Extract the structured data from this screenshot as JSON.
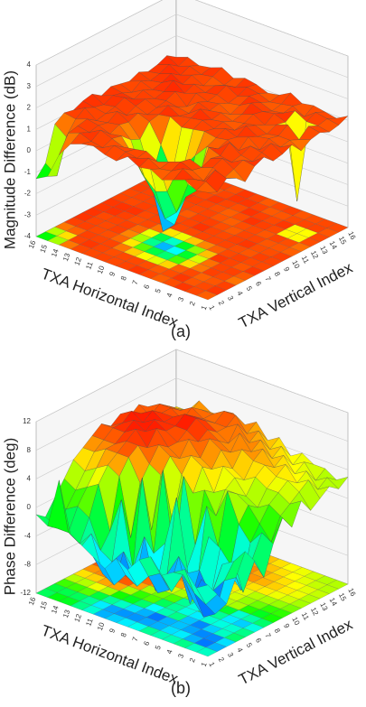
{
  "chart_data": [
    {
      "type": "surface",
      "z_label": "Magnitude Difference (dB)",
      "x_label": "TXA Horizontal Index",
      "y_label": "TXA Vertical Index",
      "caption": "(a)",
      "x": [
        1,
        2,
        3,
        4,
        5,
        6,
        7,
        8,
        9,
        10,
        11,
        12,
        13,
        14,
        15,
        16
      ],
      "y": [
        1,
        2,
        3,
        4,
        5,
        6,
        7,
        8,
        9,
        10,
        11,
        12,
        13,
        14,
        15,
        16
      ],
      "zlim": [
        -4,
        4
      ],
      "zticks": [
        -4,
        -3,
        -2,
        -1,
        0,
        1,
        2,
        3,
        4
      ],
      "z": [
        [
          1.0,
          0.8,
          1.2,
          1.0,
          0.6,
          1.1,
          1.3,
          0.9,
          1.0,
          1.2,
          0.7,
          1.0,
          1.1,
          0.9,
          1.0,
          1.2
        ],
        [
          0.9,
          1.1,
          1.4,
          0.8,
          1.0,
          1.2,
          0.9,
          1.1,
          1.3,
          0.9,
          1.0,
          0.8,
          1.2,
          1.0,
          1.1,
          0.9
        ],
        [
          1.2,
          1.0,
          0.7,
          1.1,
          1.3,
          0.9,
          1.0,
          1.2,
          0.8,
          1.1,
          1.0,
          1.3,
          -2.5,
          1.0,
          1.2,
          1.0
        ],
        [
          1.0,
          1.3,
          1.0,
          0.9,
          1.1,
          1.0,
          1.4,
          0.8,
          1.2,
          1.0,
          0.9,
          1.1,
          1.0,
          1.3,
          0.8,
          1.1
        ],
        [
          0.8,
          1.0,
          1.2,
          1.1,
          0.2,
          1.2,
          0.9,
          1.1,
          1.0,
          1.3,
          1.1,
          0.9,
          1.2,
          1.0,
          1.1,
          1.0
        ],
        [
          1.1,
          0.9,
          1.0,
          0.5,
          -0.5,
          -1.0,
          0.8,
          1.0,
          1.2,
          0.9,
          1.0,
          1.2,
          1.1,
          0.9,
          1.0,
          1.3
        ],
        [
          1.0,
          1.2,
          0.8,
          -0.8,
          -2.0,
          -1.5,
          0.2,
          1.1,
          1.0,
          1.1,
          0.9,
          1.0,
          1.3,
          1.1,
          0.9,
          1.0
        ],
        [
          1.3,
          1.0,
          1.1,
          -1.0,
          -2.5,
          -3.0,
          -0.5,
          1.0,
          1.2,
          1.0,
          1.1,
          0.8,
          1.0,
          1.2,
          1.1,
          0.9
        ],
        [
          0.9,
          1.1,
          1.0,
          -0.5,
          -1.5,
          -3.5,
          -1.0,
          0.9,
          1.1,
          1.3,
          1.0,
          1.1,
          0.9,
          1.0,
          1.2,
          1.1
        ],
        [
          1.0,
          1.2,
          0.9,
          0.3,
          -0.8,
          -1.2,
          0.1,
          1.2,
          1.0,
          0.9,
          1.2,
          1.0,
          1.1,
          1.3,
          1.0,
          1.2
        ],
        [
          1.2,
          0.9,
          1.1,
          1.0,
          0.6,
          0.4,
          1.0,
          1.1,
          1.3,
          1.0,
          0.8,
          1.2,
          1.0,
          1.1,
          0.9,
          1.0
        ],
        [
          1.1,
          1.0,
          1.3,
          0.9,
          1.1,
          1.0,
          1.2,
          0.9,
          1.0,
          1.1,
          1.3,
          1.0,
          1.2,
          0.9,
          1.1,
          1.3
        ],
        [
          0.9,
          1.2,
          1.0,
          1.1,
          1.0,
          1.3,
          0.9,
          1.1,
          1.2,
          1.0,
          1.1,
          1.4,
          1.0,
          1.2,
          1.0,
          1.1
        ],
        [
          0.2,
          1.0,
          1.1,
          1.2,
          0.9,
          1.0,
          1.1,
          1.3,
          1.0,
          1.2,
          1.0,
          1.1,
          1.3,
          1.0,
          1.2,
          1.0
        ],
        [
          -1.0,
          -1.2,
          0.4,
          1.0,
          1.3,
          1.1,
          1.0,
          1.2,
          1.1,
          0.9,
          1.2,
          1.0,
          1.1,
          1.3,
          1.0,
          1.2
        ],
        [
          -1.3,
          -0.8,
          0.8,
          1.1,
          1.0,
          1.2,
          1.3,
          1.0,
          1.2,
          1.1,
          1.0,
          1.2,
          1.0,
          1.1,
          1.3,
          1.0
        ]
      ]
    },
    {
      "type": "surface",
      "z_label": "Phase Difference (deg)",
      "x_label": "TXA Horizontal Index",
      "y_label": "TXA Vertical Index",
      "caption": "(b)",
      "x": [
        1,
        2,
        3,
        4,
        5,
        6,
        7,
        8,
        9,
        10,
        11,
        12,
        13,
        14,
        15,
        16
      ],
      "y": [
        1,
        2,
        3,
        4,
        5,
        6,
        7,
        8,
        9,
        10,
        11,
        12,
        13,
        14,
        15,
        16
      ],
      "zlim": [
        -12,
        12
      ],
      "zticks": [
        -12,
        -8,
        -4,
        0,
        4,
        8,
        12
      ],
      "z": [
        [
          -2,
          -4,
          -6,
          -3,
          0,
          -2,
          -5,
          -1,
          2,
          0,
          3,
          1,
          2,
          3,
          2,
          3
        ],
        [
          -3,
          -6,
          -8,
          -4,
          -2,
          -7,
          -3,
          0,
          -2,
          1,
          2,
          3,
          4,
          2,
          3,
          2
        ],
        [
          -1,
          -5,
          -9,
          -6,
          -3,
          -4,
          -8,
          -2,
          0,
          2,
          3,
          4,
          3,
          4,
          2,
          3
        ],
        [
          -2,
          -3,
          -7,
          -5,
          -8,
          -2,
          -6,
          0,
          2,
          1,
          3,
          4,
          5,
          3,
          4,
          3
        ],
        [
          -3,
          -6,
          -4,
          -9,
          -5,
          -1,
          -3,
          4,
          3,
          2,
          4,
          5,
          4,
          5,
          3,
          4
        ],
        [
          -1,
          -4,
          -7,
          -3,
          -6,
          -8,
          2,
          0,
          3,
          4,
          3,
          5,
          6,
          4,
          5,
          3
        ],
        [
          -2,
          -5,
          -8,
          -6,
          4,
          -7,
          -4,
          3,
          2,
          5,
          4,
          6,
          5,
          6,
          4,
          5
        ],
        [
          -4,
          -7,
          -5,
          -9,
          -3,
          -6,
          5,
          2,
          5,
          4,
          6,
          5,
          7,
          5,
          6,
          4
        ],
        [
          -3,
          -6,
          -8,
          -2,
          -5,
          6,
          -2,
          4,
          6,
          5,
          7,
          6,
          5,
          7,
          5,
          6
        ],
        [
          -5,
          -8,
          -4,
          -7,
          5,
          -3,
          4,
          6,
          5,
          7,
          6,
          7,
          6,
          6,
          7,
          5
        ],
        [
          -4,
          -7,
          -6,
          2,
          -4,
          3,
          5,
          7,
          6,
          6,
          7,
          8,
          7,
          6,
          7,
          6
        ],
        [
          -3,
          -2,
          -5,
          -3,
          4,
          6,
          7,
          6,
          8,
          7,
          7,
          8,
          7,
          6,
          6,
          5
        ],
        [
          -2,
          -4,
          -1,
          3,
          5,
          6,
          7,
          8,
          7,
          8,
          7,
          7,
          6,
          7,
          6,
          5
        ],
        [
          5,
          -3,
          0,
          2,
          4,
          6,
          6,
          7,
          8,
          7,
          8,
          7,
          7,
          6,
          5,
          6
        ],
        [
          -2,
          -3,
          -1,
          1,
          3,
          5,
          6,
          7,
          7,
          8,
          7,
          6,
          7,
          6,
          5,
          4
        ],
        [
          -1,
          -2,
          0,
          2,
          4,
          5,
          6,
          7,
          6,
          7,
          6,
          7,
          6,
          5,
          4,
          4
        ]
      ]
    }
  ]
}
